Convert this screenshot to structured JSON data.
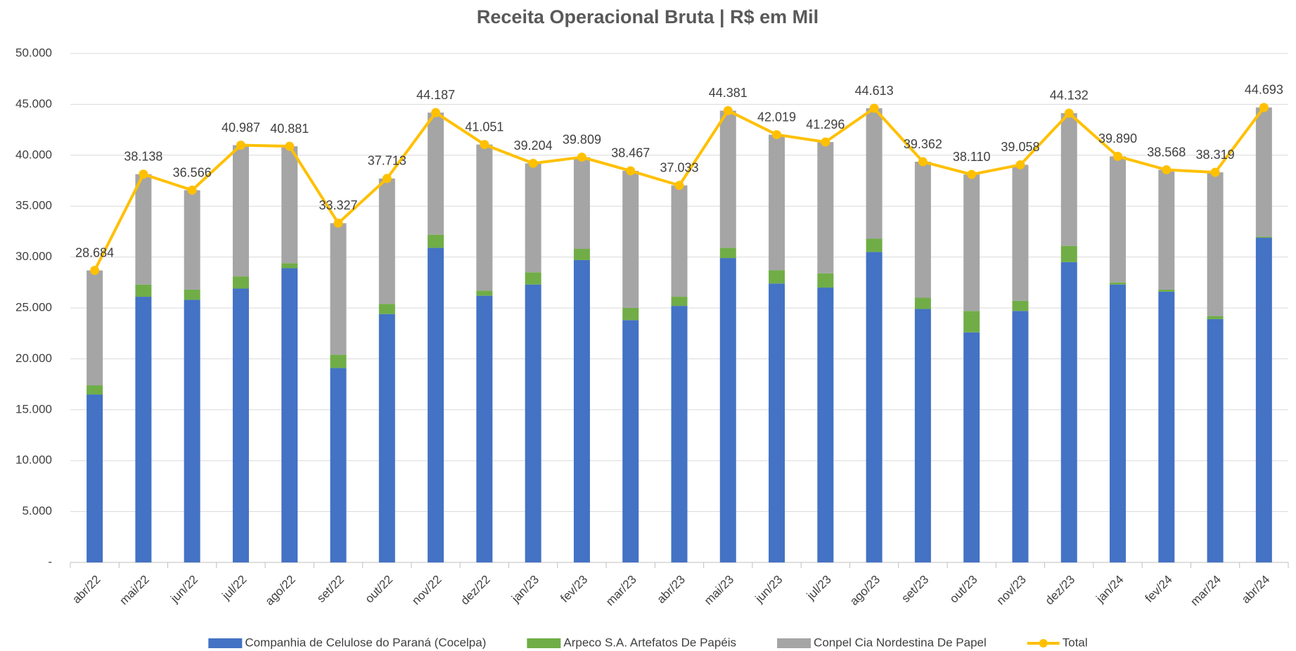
{
  "chart_data": {
    "type": "bar",
    "stacked": true,
    "title": "Receita Operacional Bruta | R$ em Mil",
    "categories": [
      "abr/22",
      "mai/22",
      "jun/22",
      "jul/22",
      "ago/22",
      "set/22",
      "out/22",
      "nov/22",
      "dez/22",
      "jan/23",
      "fev/23",
      "mar/23",
      "abr/23",
      "mai/23",
      "jun/23",
      "jul/23",
      "ago/23",
      "set/23",
      "out/23",
      "nov/23",
      "dez/23",
      "jan/24",
      "fev/24",
      "mar/24",
      "abr/24"
    ],
    "series": [
      {
        "name": "Companhia de Celulose do Paraná (Cocelpa)",
        "color": "#4472c4",
        "type": "bar",
        "values": [
          16500,
          26100,
          25800,
          26900,
          28900,
          19100,
          24400,
          30900,
          26200,
          27300,
          29700,
          23800,
          25200,
          29900,
          27400,
          27000,
          30500,
          24900,
          22600,
          24700,
          29500,
          27300,
          26600,
          23900,
          31900
        ]
      },
      {
        "name": "Arpeco S.A. Artefatos De Papéis",
        "color": "#70ad47",
        "type": "bar",
        "values": [
          900,
          1200,
          1000,
          1200,
          500,
          1300,
          1000,
          1300,
          500,
          1200,
          1100,
          1200,
          900,
          1000,
          1300,
          1400,
          1300,
          1100,
          2100,
          1000,
          1600,
          200,
          200,
          300,
          100
        ]
      },
      {
        "name": "Conpel Cia Nordestina De Papel",
        "color": "#a5a5a5",
        "type": "bar",
        "values": [
          11284,
          10838,
          9766,
          12887,
          11481,
          12927,
          12313,
          11987,
          14351,
          10704,
          9009,
          13467,
          10933,
          13481,
          13319,
          12896,
          12813,
          13362,
          13410,
          13358,
          13032,
          12390,
          11768,
          14119,
          12693
        ]
      },
      {
        "name": "Total",
        "color": "#ffc000",
        "type": "line",
        "values": [
          28684,
          38138,
          36566,
          40987,
          40881,
          33327,
          37713,
          44187,
          41051,
          39204,
          39809,
          38467,
          37033,
          44381,
          42019,
          41296,
          44613,
          39362,
          38110,
          39058,
          44132,
          39890,
          38568,
          38319,
          44693
        ],
        "value_labels": [
          "28.684",
          "38.138",
          "36.566",
          "40.987",
          "40.881",
          "33.327",
          "37.713",
          "44.187",
          "41.051",
          "39.204",
          "39.809",
          "38.467",
          "37.033",
          "44.381",
          "42.019",
          "41.296",
          "44.613",
          "39.362",
          "38.110",
          "39.058",
          "44.132",
          "39.890",
          "38.568",
          "38.319",
          "44.693"
        ]
      }
    ],
    "ylim": [
      0,
      50000
    ],
    "yticks": [
      {
        "value": 0,
        "label": "-"
      },
      {
        "value": 5000,
        "label": "5.000"
      },
      {
        "value": 10000,
        "label": "10.000"
      },
      {
        "value": 15000,
        "label": "15.000"
      },
      {
        "value": 20000,
        "label": "20.000"
      },
      {
        "value": 25000,
        "label": "25.000"
      },
      {
        "value": 30000,
        "label": "30.000"
      },
      {
        "value": 35000,
        "label": "35.000"
      },
      {
        "value": 40000,
        "label": "40.000"
      },
      {
        "value": 45000,
        "label": "45.000"
      },
      {
        "value": 50000,
        "label": "50.000"
      }
    ],
    "grid": true,
    "legend": "bottom"
  }
}
